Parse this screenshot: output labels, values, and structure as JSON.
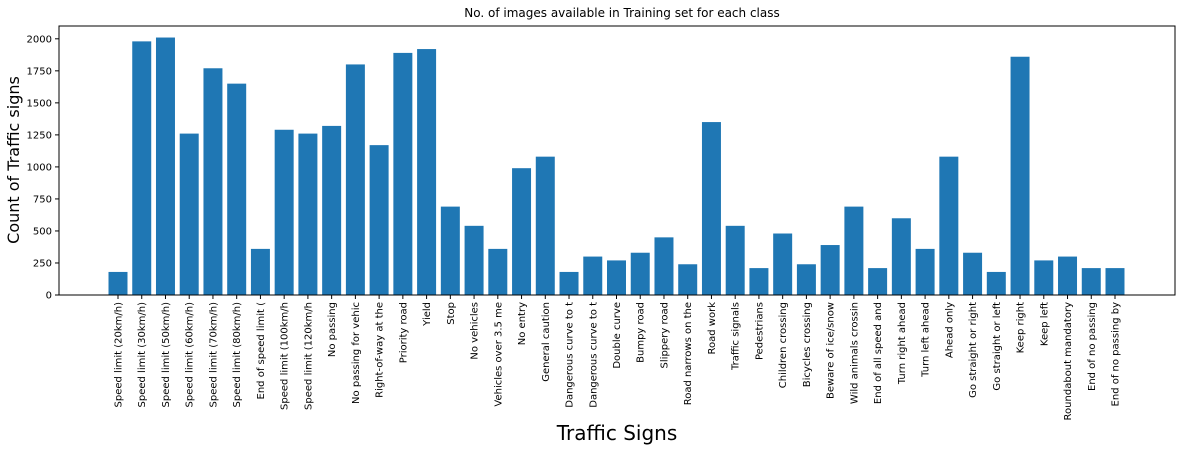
{
  "chart_data": {
    "type": "bar",
    "title": "No. of images available in Training set for each class",
    "xlabel": "Traffic Signs",
    "ylabel": "Count of Traffic signs",
    "ylim": [
      0,
      2100
    ],
    "yticks": [
      0,
      250,
      500,
      750,
      1000,
      1250,
      1500,
      1750,
      2000
    ],
    "grid": false,
    "bar_color": "#1f77b4",
    "categories": [
      "Speed limit (20km/h)",
      "Speed limit (30km/h)",
      "Speed limit (50km/h)",
      "Speed limit (60km/h)",
      "Speed limit (70km/h)",
      "Speed limit (80km/h)",
      "End of speed limit (",
      "Speed limit (100km/h",
      "Speed limit (120km/h",
      "No passing",
      "No passing for vehic",
      "Right-of-way at the",
      "Priority road",
      "Yield",
      "Stop",
      "No vehicles",
      "Vehicles over 3.5 me",
      "No entry",
      "General caution",
      "Dangerous curve to t",
      "Dangerous curve to t",
      "Double curve",
      "Bumpy road",
      "Slippery road",
      "Road narrows on the",
      "Road work",
      "Traffic signals",
      "Pedestrians",
      "Children crossing",
      "Bicycles crossing",
      "Beware of ice/snow",
      "Wild animals crossin",
      "End of all speed and",
      "Turn right ahead",
      "Turn left ahead",
      "Ahead only",
      "Go straight or right",
      "Go straight or left",
      "Keep right",
      "Keep left",
      "Roundabout mandatory",
      "End of no passing",
      "End of no passing by"
    ],
    "values": [
      180,
      1980,
      2010,
      1260,
      1770,
      1650,
      360,
      1290,
      1260,
      1320,
      1800,
      1170,
      1890,
      1920,
      690,
      540,
      360,
      990,
      1080,
      180,
      300,
      270,
      330,
      450,
      240,
      1350,
      540,
      210,
      480,
      240,
      390,
      690,
      210,
      599,
      360,
      1080,
      330,
      180,
      1860,
      270,
      300,
      210,
      210
    ]
  }
}
